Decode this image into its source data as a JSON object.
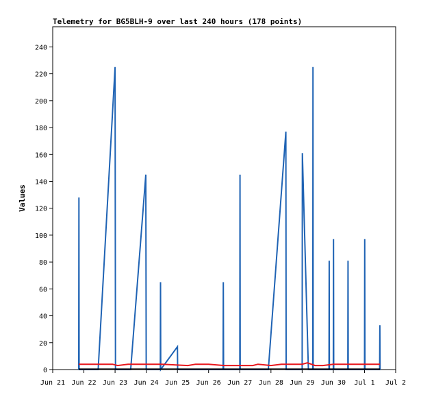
{
  "chart_data": {
    "type": "line",
    "title": "Telemetry for BG5BLH-9 over last 240 hours (178 points)",
    "xlabel": "",
    "ylabel": "Values",
    "x_unit": "date",
    "xlim": [
      "Jun 21 00:00",
      "Jul 2 00:00"
    ],
    "ylim": [
      0,
      255
    ],
    "x_ticks": [
      "Jun 21",
      "Jun 22",
      "Jun 23",
      "Jun 24",
      "Jun 25",
      "Jun 26",
      "Jun 27",
      "Jun 28",
      "Jun 29",
      "Jun 30",
      "Jul 1",
      "Jul 2"
    ],
    "y_ticks": [
      0,
      20,
      40,
      60,
      80,
      100,
      120,
      140,
      160,
      180,
      200,
      220,
      240
    ],
    "grid": false,
    "legend": "none",
    "series": [
      {
        "color": "#1f63b4",
        "points": [
          [
            "Jun 21 20:00",
            0
          ],
          [
            "Jun 21 20:10",
            128
          ],
          [
            "Jun 21 20:20",
            0
          ],
          [
            "Jun 22 11:00",
            0
          ],
          [
            "Jun 23 00:00",
            225
          ],
          [
            "Jun 23 00:20",
            0
          ],
          [
            "Jun 23 12:00",
            0
          ],
          [
            "Jun 23 23:40",
            145
          ],
          [
            "Jun 24 00:00",
            0
          ],
          [
            "Jun 24 10:50",
            0
          ],
          [
            "Jun 24 11:00",
            65
          ],
          [
            "Jun 24 11:10",
            0
          ],
          [
            "Jun 25 00:00",
            17
          ],
          [
            "Jun 25 00:10",
            0
          ],
          [
            "Jun 26 11:10",
            0
          ],
          [
            "Jun 26 11:20",
            65
          ],
          [
            "Jun 26 11:30",
            0
          ],
          [
            "Jun 27 00:00",
            0
          ],
          [
            "Jun 27 00:10",
            145
          ],
          [
            "Jun 27 00:20",
            0
          ],
          [
            "Jun 27 22:00",
            0
          ],
          [
            "Jun 28 11:30",
            177
          ],
          [
            "Jun 28 11:40",
            0
          ],
          [
            "Jun 29 00:00",
            0
          ],
          [
            "Jun 29 00:10",
            161
          ],
          [
            "Jun 29 04:50",
            0
          ],
          [
            "Jun 29 08:10",
            0
          ],
          [
            "Jun 29 08:20",
            225
          ],
          [
            "Jun 29 08:30",
            0
          ],
          [
            "Jun 29 20:40",
            0
          ],
          [
            "Jun 29 20:50",
            81
          ],
          [
            "Jun 29 21:00",
            0
          ],
          [
            "Jun 30 00:00",
            0
          ],
          [
            "Jun 30 00:10",
            97
          ],
          [
            "Jun 30 00:20",
            0
          ],
          [
            "Jun 30 11:10",
            0
          ],
          [
            "Jun 30 11:20",
            81
          ],
          [
            "Jun 30 11:30",
            0
          ],
          [
            "Jul 1 00:00",
            0
          ],
          [
            "Jul 1 00:10",
            97
          ],
          [
            "Jul 1 00:20",
            0
          ],
          [
            "Jul 1 11:40",
            0
          ],
          [
            "Jul 1 11:50",
            33
          ],
          [
            "Jul 1 12:00",
            0
          ]
        ]
      },
      {
        "color": "#e8161b",
        "points": [
          [
            "Jun 21 20:00",
            4
          ],
          [
            "Jun 22 10:00",
            4
          ],
          [
            "Jun 22 22:00",
            4
          ],
          [
            "Jun 23 02:00",
            3
          ],
          [
            "Jun 23 10:00",
            4
          ],
          [
            "Jun 24 12:00",
            4
          ],
          [
            "Jun 25 08:00",
            3
          ],
          [
            "Jun 25 14:00",
            4
          ],
          [
            "Jun 26 00:00",
            4
          ],
          [
            "Jun 26 12:00",
            3
          ],
          [
            "Jun 27 10:00",
            3
          ],
          [
            "Jun 27 14:00",
            4
          ],
          [
            "Jun 28 00:00",
            3
          ],
          [
            "Jun 28 08:00",
            4
          ],
          [
            "Jun 29 00:00",
            4
          ],
          [
            "Jun 29 04:00",
            5
          ],
          [
            "Jun 29 10:00",
            3
          ],
          [
            "Jun 29 16:00",
            3
          ],
          [
            "Jun 30 00:00",
            4
          ],
          [
            "Jul 1 12:00",
            4
          ]
        ]
      },
      {
        "color": "#000000",
        "points": [
          [
            "Jun 21 20:00",
            0.3
          ],
          [
            "Jul 1 12:00",
            0.3
          ]
        ]
      }
    ]
  }
}
